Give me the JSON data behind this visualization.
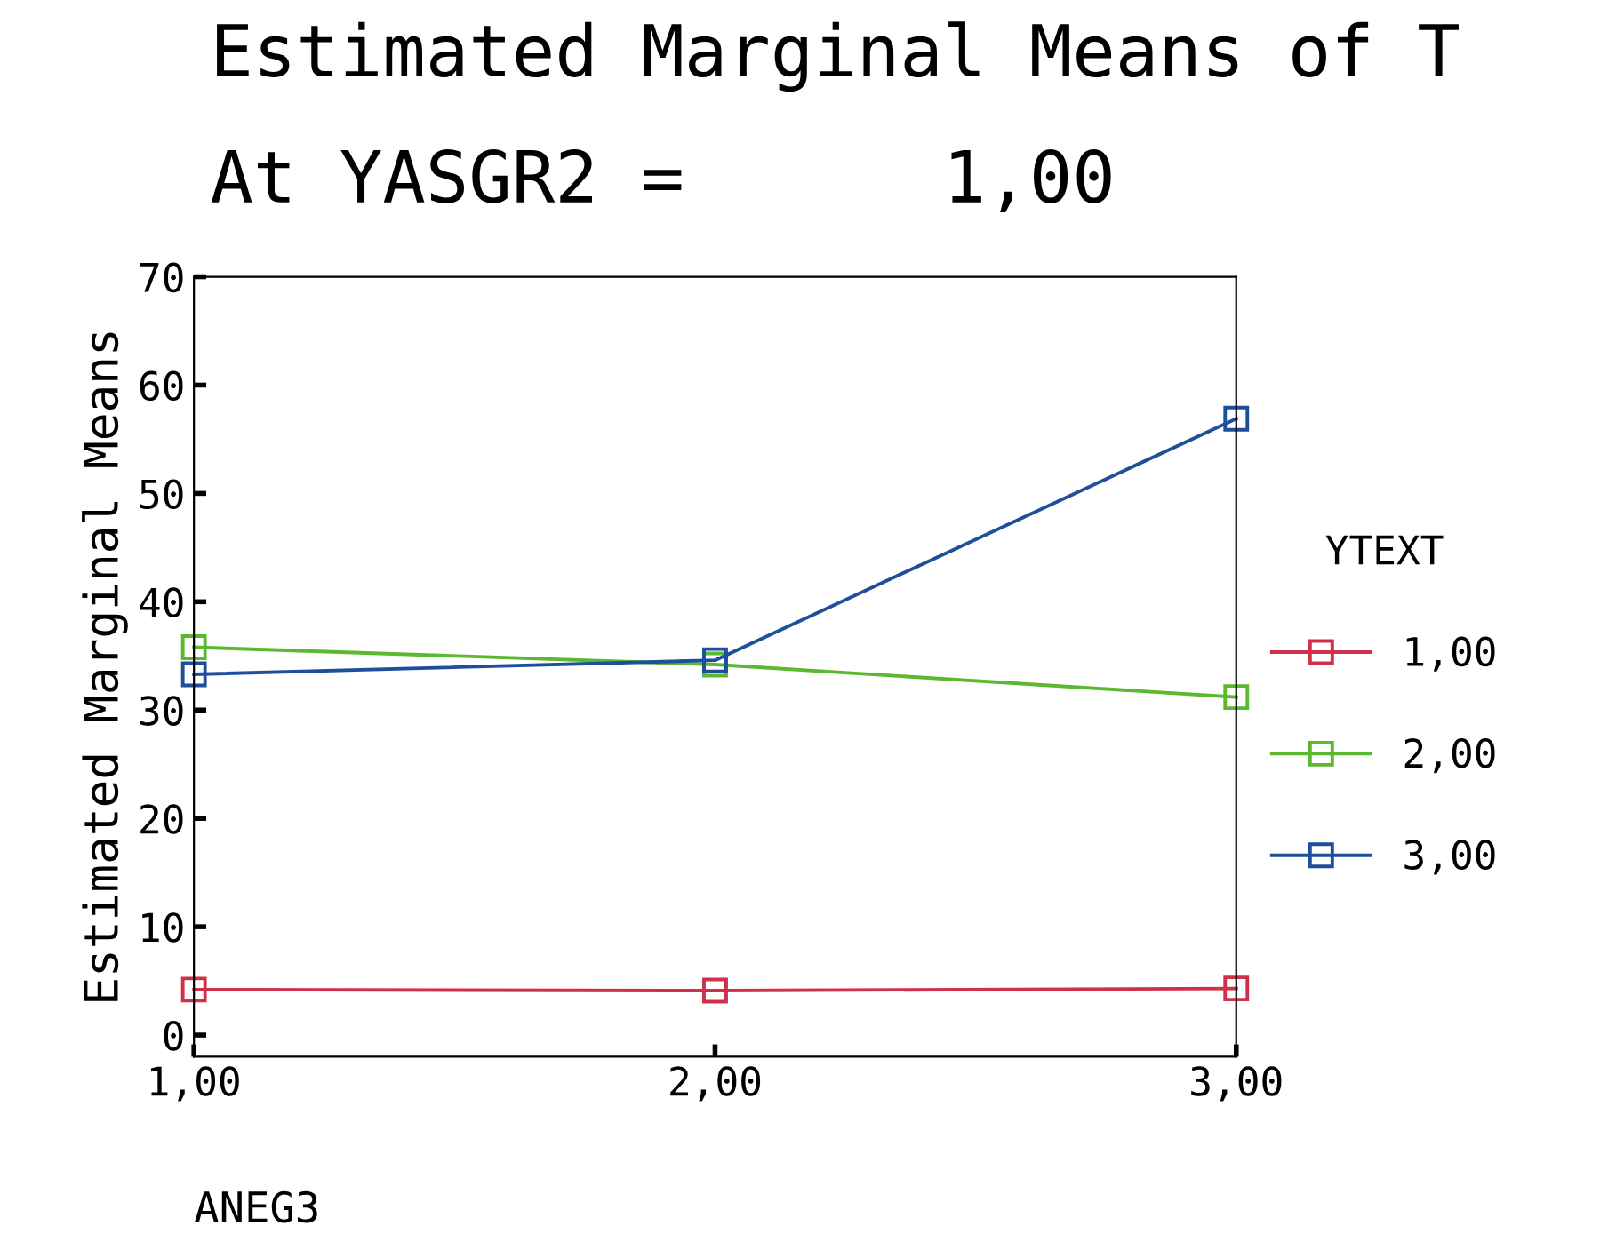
{
  "chart_data": {
    "type": "line",
    "title": "Estimated Marginal Means of T",
    "subtitle": "At YASGR2 =      1,00",
    "xlabel": "ANEG3",
    "ylabel": "Estimated Marginal Means",
    "legend_title": "YTEXT",
    "x": [
      1,
      2,
      3
    ],
    "series": [
      {
        "name": "1,00",
        "color": "#d0304a",
        "values": [
          4.2,
          4.1,
          4.3
        ]
      },
      {
        "name": "2,00",
        "color": "#5cb82e",
        "values": [
          35.8,
          34.2,
          31.2
        ]
      },
      {
        "name": "3,00",
        "color": "#1f4f9a",
        "values": [
          33.3,
          34.6,
          56.9
        ]
      }
    ],
    "xlim": [
      1,
      3
    ],
    "xticks": [
      {
        "value": 1,
        "label": "1,00"
      },
      {
        "value": 2,
        "label": "2,00"
      },
      {
        "value": 3,
        "label": "3,00"
      }
    ],
    "ylim": [
      -2,
      70
    ],
    "yticks": [
      0,
      10,
      20,
      30,
      40,
      50,
      60,
      70
    ],
    "marker": "square",
    "line_style": "solid",
    "grid": false,
    "legend": "right"
  }
}
